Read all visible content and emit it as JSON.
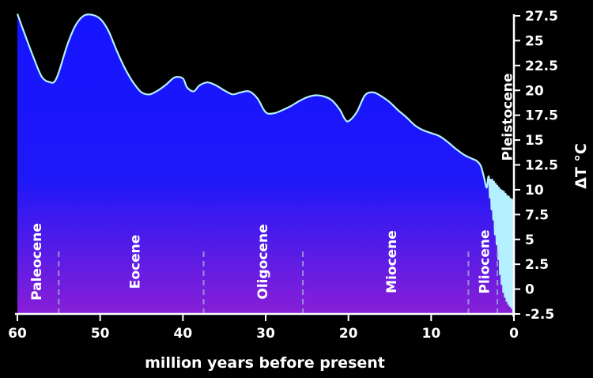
{
  "chart_data": {
    "type": "area",
    "xlabel": "million years before present",
    "ylabel": "ΔT °C",
    "xlim": [
      60,
      0
    ],
    "ylim": [
      -2.5,
      27.5
    ],
    "x_ticks": [
      60,
      50,
      40,
      30,
      20,
      10,
      0
    ],
    "y_ticks": [
      27.5,
      25,
      22.5,
      20,
      17.5,
      15,
      12.5,
      10,
      7.5,
      5,
      2.5,
      0,
      -2.5
    ],
    "colors": {
      "line": "#b4f0ff",
      "fill_top": "#1414ff",
      "fill_bottom": "#8a1fd6",
      "background": "#000000",
      "divider": "#9b8fd8"
    },
    "series": [
      {
        "x": [
          60,
          59,
          58,
          57,
          56,
          55.5,
          55,
          54,
          53,
          52,
          51,
          50,
          49,
          48,
          47,
          46,
          45,
          44,
          43,
          42,
          41,
          40,
          39.5,
          38.7,
          38,
          37,
          36,
          35,
          34,
          33,
          32,
          31,
          30,
          29,
          28,
          27,
          26,
          25,
          24,
          23,
          22,
          21,
          20.5,
          20,
          19,
          18,
          17,
          16,
          15,
          14,
          13,
          12,
          11,
          10,
          9,
          8,
          7,
          6,
          5,
          4.5,
          4,
          3.6,
          3.3,
          3.1,
          3.0,
          2.9,
          2.8,
          2.7,
          2.6,
          2.5,
          2.4,
          2.3,
          2.2,
          2.1,
          2.0,
          1.9,
          1.8,
          1.7,
          1.6,
          1.5,
          1.4,
          1.3,
          1.2,
          1.1,
          1.0,
          0.9,
          0.8,
          0.7,
          0.6,
          0.5,
          0.4,
          0.3,
          0.2,
          0.1,
          0
        ],
        "y": [
          27.7,
          25.4,
          23.2,
          21.3,
          20.8,
          20.9,
          21.8,
          24.5,
          26.5,
          27.5,
          27.6,
          27.2,
          26.0,
          24.0,
          22.2,
          20.8,
          19.8,
          19.6,
          20.0,
          20.6,
          21.3,
          21.2,
          20.3,
          19.9,
          20.5,
          20.8,
          20.5,
          20.0,
          19.6,
          19.8,
          19.9,
          19.2,
          17.8,
          17.7,
          18.0,
          18.4,
          18.9,
          19.3,
          19.5,
          19.4,
          19.0,
          18.0,
          17.2,
          16.9,
          17.8,
          19.5,
          19.8,
          19.4,
          18.8,
          18.0,
          17.3,
          16.5,
          16.0,
          15.7,
          15.4,
          14.8,
          14.1,
          13.5,
          13.1,
          12.9,
          12.4,
          11.2,
          10.2,
          11.3,
          11.0,
          9.2,
          11.0,
          8.0,
          11.0,
          7.0,
          10.8,
          5.5,
          10.6,
          4.5,
          10.4,
          3.0,
          10.2,
          1.5,
          10.0,
          0.5,
          9.9,
          -0.3,
          9.8,
          -0.8,
          9.6,
          -1.2,
          9.4,
          -1.5,
          9.3,
          -1.7,
          9.1,
          -1.9,
          9.0,
          -1.9,
          -2.0
        ]
      }
    ],
    "epochs": [
      {
        "name": "Paleocene",
        "label_x": 57.7,
        "boundary": 55
      },
      {
        "name": "Eocene",
        "label_x": 45.8,
        "boundary": 37.5
      },
      {
        "name": "Oligocene",
        "label_x": 30.4,
        "boundary": 25.5
      },
      {
        "name": "Miocene",
        "label_x": 14.8,
        "boundary": 5.5
      },
      {
        "name": "Pliocene",
        "label_x": 3.6,
        "boundary": 2.0
      },
      {
        "name": "Pleistocene",
        "label_x": 0.8,
        "boundary": null
      }
    ]
  }
}
